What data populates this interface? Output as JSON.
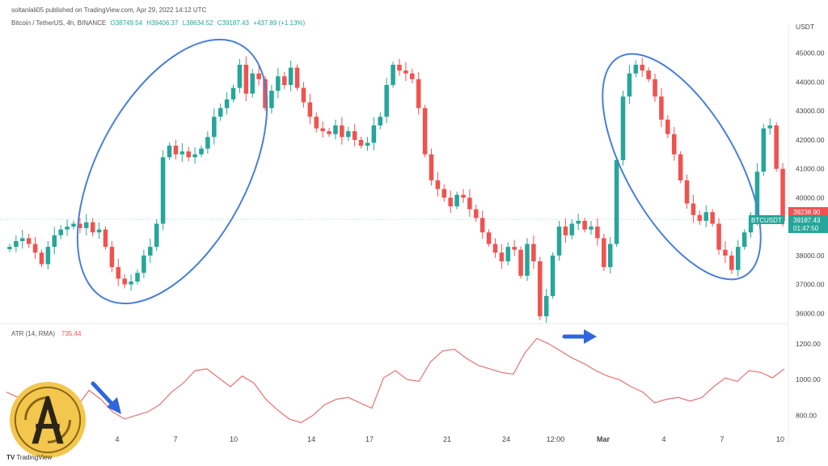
{
  "header": {
    "publisher": "soltanlali05 published on TradingView.com, Apr 29, 2022 14:12 UTC",
    "symbol": "Bitcoin / TetherUS, 4h, BINANCE",
    "open": "O38749.54",
    "high": "H39406.37",
    "low": "L38634.52",
    "close": "C39187.43",
    "change": "+437.89 (+1.13%)",
    "currency": "USDT"
  },
  "price_tags": {
    "red_value": "39238.90",
    "symbol_tag": "BTCUSDT",
    "green_value": "39187.43",
    "countdown": "01:47:50"
  },
  "footer": {
    "brand": "TradingView"
  },
  "colors": {
    "up": "#26a69a",
    "down": "#ef5350",
    "atr": "#e57373",
    "annotation": "#4a7fd6"
  },
  "chart_data": [
    {
      "type": "candlestick",
      "title": "Bitcoin / TetherUS, 4h, BINANCE",
      "x_ticks": [
        "4",
        "7",
        "10",
        "14",
        "17",
        "21",
        "24",
        "12:00",
        "Mar",
        "4",
        "7",
        "10"
      ],
      "y_ticks": [
        36000,
        37000,
        38000,
        39000,
        40000,
        41000,
        42000,
        43000,
        44000,
        45000
      ],
      "ylim": [
        35700,
        46000
      ],
      "grid": false,
      "close_path": [
        38300,
        38500,
        38600,
        38400,
        38100,
        37700,
        38300,
        38700,
        38900,
        39000,
        39100,
        38950,
        39150,
        38800,
        38900,
        38300,
        37600,
        37200,
        37000,
        37100,
        37400,
        38000,
        38300,
        39100,
        41400,
        41800,
        41500,
        41600,
        41400,
        41500,
        41700,
        42100,
        42800,
        43100,
        43400,
        43800,
        44600,
        43600,
        44300,
        44100,
        43100,
        43700,
        44200,
        43900,
        44500,
        43800,
        43300,
        42800,
        42400,
        42300,
        42200,
        42500,
        42100,
        42300,
        42000,
        41800,
        41900,
        42500,
        42800,
        43900,
        44600,
        44400,
        44300,
        44100,
        43100,
        41500,
        40600,
        40300,
        40000,
        39700,
        40100,
        40000,
        39600,
        39300,
        38800,
        38400,
        38100,
        37800,
        38300,
        38200,
        37300,
        38400,
        37800,
        35900,
        36600,
        38000,
        39000,
        38700,
        39100,
        39200,
        38900,
        39000,
        38600,
        37600,
        38400,
        41300,
        43500,
        44300,
        44600,
        44400,
        44100,
        43500,
        42700,
        42200,
        41500,
        40600,
        39800,
        39400,
        39200,
        39500,
        39100,
        38200,
        38000,
        37500,
        38300,
        38800,
        39300,
        40900,
        42400,
        42500,
        41000,
        39187
      ],
      "annotations": [
        "ellipse",
        "ellipse"
      ]
    },
    {
      "type": "line",
      "title": "ATR (14, RMA)",
      "current_value": "735.44",
      "y_ticks": [
        800,
        1000,
        1200
      ],
      "ylim": [
        680,
        1290
      ],
      "series": [
        {
          "values": [
            930,
            900,
            860,
            760,
            740,
            760,
            850,
            940,
            890,
            820,
            780,
            800,
            820,
            860,
            930,
            980,
            1050,
            1060,
            1010,
            960,
            1020,
            980,
            890,
            830,
            780,
            760,
            800,
            860,
            890,
            900,
            870,
            840,
            1010,
            1050,
            1000,
            990,
            1100,
            1160,
            1170,
            1120,
            1080,
            1060,
            1040,
            1030,
            1150,
            1230,
            1200,
            1160,
            1120,
            1090,
            1050,
            1020,
            1000,
            960,
            930,
            870,
            890,
            900,
            880,
            900,
            960,
            1010,
            990,
            1050,
            1040,
            1010,
            1060
          ]
        }
      ],
      "annotations": [
        "arrow",
        "arrow"
      ]
    }
  ]
}
